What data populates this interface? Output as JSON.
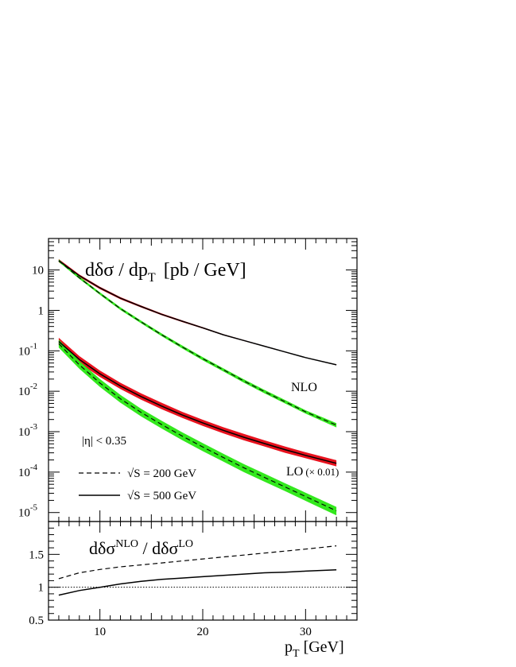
{
  "chart_data": [
    {
      "type": "line",
      "scale": "log",
      "title": "dδσ / dp",
      "title_sub": "T",
      "title_units": "[pb / GeV]",
      "xlim": [
        5,
        35
      ],
      "ylim": [
        6e-06,
        60
      ],
      "y_ticks": [
        {
          "value": 10,
          "mant": "10",
          "exp": ""
        },
        {
          "value": 1,
          "mant": "1",
          "exp": ""
        },
        {
          "value": 0.1,
          "mant": "10",
          "exp": "-1"
        },
        {
          "value": 0.01,
          "mant": "10",
          "exp": "-2"
        },
        {
          "value": 0.001,
          "mant": "10",
          "exp": "-3"
        },
        {
          "value": 0.0001,
          "mant": "10",
          "exp": "-4"
        },
        {
          "value": 1e-05,
          "mant": "10",
          "exp": "-5"
        }
      ],
      "x": [
        6,
        8,
        10,
        12,
        14,
        16,
        18,
        20,
        22,
        24,
        26,
        28,
        30,
        33
      ],
      "series": [
        {
          "group": "NLO",
          "energy": "500",
          "style": "solid",
          "band_color": "#e8121e",
          "values": [
            17,
            7.2,
            3.6,
            2.0,
            1.25,
            0.8,
            0.54,
            0.37,
            0.25,
            0.18,
            0.13,
            0.094,
            0.068,
            0.045
          ],
          "band": [
            [
              15.5,
              18.6
            ],
            [
              6.7,
              7.7
            ],
            [
              3.35,
              3.85
            ],
            [
              1.88,
              2.12
            ],
            [
              1.18,
              1.32
            ],
            [
              0.76,
              0.84
            ],
            [
              0.515,
              0.565
            ],
            [
              0.355,
              0.385
            ],
            [
              0.242,
              0.258
            ],
            [
              0.175,
              0.185
            ],
            [
              0.127,
              0.133
            ],
            [
              0.092,
              0.096
            ],
            [
              0.067,
              0.069
            ],
            [
              0.044,
              0.046
            ]
          ]
        },
        {
          "group": "NLO",
          "energy": "200",
          "style": "dashed",
          "band_color": "#33e81d",
          "values": [
            17,
            6.4,
            2.6,
            1.1,
            0.52,
            0.25,
            0.125,
            0.064,
            0.034,
            0.018,
            0.0098,
            0.0055,
            0.0031,
            0.00145
          ],
          "band": [
            [
              15.8,
              18.3
            ],
            [
              6.0,
              6.9
            ],
            [
              2.42,
              2.8
            ],
            [
              1.02,
              1.19
            ],
            [
              0.48,
              0.56
            ],
            [
              0.23,
              0.27
            ],
            [
              0.115,
              0.136
            ],
            [
              0.058,
              0.07
            ],
            [
              0.031,
              0.037
            ],
            [
              0.0163,
              0.0198
            ],
            [
              0.0089,
              0.0108
            ],
            [
              0.005,
              0.0061
            ],
            [
              0.0028,
              0.0034
            ],
            [
              0.00128,
              0.00162
            ]
          ]
        },
        {
          "group": "LO (× 0.01)",
          "energy": "500",
          "style": "solid",
          "band_color": "#e8121e",
          "values": [
            0.17,
            0.061,
            0.027,
            0.0135,
            0.0074,
            0.0043,
            0.0026,
            0.00165,
            0.00108,
            0.00073,
            0.00051,
            0.00036,
            0.00026,
            0.000165
          ],
          "band": [
            [
              0.135,
              0.21
            ],
            [
              0.05,
              0.074
            ],
            [
              0.0225,
              0.0325
            ],
            [
              0.0113,
              0.0162
            ],
            [
              0.0062,
              0.0089
            ],
            [
              0.0036,
              0.0052
            ],
            [
              0.0022,
              0.0031
            ],
            [
              0.00139,
              0.00197
            ],
            [
              0.00091,
              0.00129
            ],
            [
              0.00061,
              0.00088
            ],
            [
              0.00043,
              0.00061
            ],
            [
              0.0003,
              0.00043
            ],
            [
              0.00022,
              0.00031
            ],
            [
              0.000139,
              0.000197
            ]
          ]
        },
        {
          "group": "LO (× 0.01)",
          "energy": "200",
          "style": "dashed",
          "band_color": "#33e81d",
          "values": [
            0.15,
            0.045,
            0.016,
            0.0065,
            0.003,
            0.0015,
            0.00078,
            0.00042,
            0.00023,
            0.000128,
            7.4e-05,
            4.3e-05,
            2.5e-05,
            1.1e-05
          ],
          "band": [
            [
              0.12,
              0.19
            ],
            [
              0.036,
              0.056
            ],
            [
              0.0128,
              0.02
            ],
            [
              0.0052,
              0.0081
            ],
            [
              0.0024,
              0.0037
            ],
            [
              0.0012,
              0.00186
            ],
            [
              0.00062,
              0.00097
            ],
            [
              0.00033,
              0.00052
            ],
            [
              0.000182,
              0.000285
            ],
            [
              0.0001,
              0.000158
            ],
            [
              5.8e-05,
              9.2e-05
            ],
            [
              3.4e-05,
              5.3e-05
            ],
            [
              1.95e-05,
              3.1e-05
            ],
            [
              8.5e-06,
              1.38e-05
            ]
          ]
        }
      ],
      "labels": {
        "nlo": "NLO",
        "lo": "LO",
        "lo_factor": "(× 0.01)",
        "eta_cut": "|η|  < 0.35"
      },
      "legend": {
        "placement": "bottom-left",
        "entries": [
          {
            "style": "dashed",
            "label": "√S = 200 GeV"
          },
          {
            "style": "solid",
            "label": "√S = 500 GeV"
          }
        ]
      }
    },
    {
      "type": "line",
      "title": "dδσ",
      "title_sup1": "NLO",
      "title_mid": " / dδσ",
      "title_sup2": "LO",
      "xlabel": "p",
      "xlabel_sub": "T",
      "xlabel_units": " [GeV]",
      "xlim": [
        5,
        35
      ],
      "ylim": [
        0.5,
        2.0
      ],
      "x_ticks": [
        10,
        20,
        30
      ],
      "y_ticks": [
        {
          "value": 0.5,
          "label": "0.5"
        },
        {
          "value": 1.0,
          "label": "1"
        },
        {
          "value": 1.5,
          "label": "1.5"
        }
      ],
      "reference_line": 1.0,
      "x": [
        6,
        8,
        10,
        12,
        14,
        16,
        18,
        20,
        22,
        24,
        26,
        28,
        30,
        33
      ],
      "series": [
        {
          "energy": "200",
          "style": "dashed",
          "values": [
            1.13,
            1.22,
            1.27,
            1.31,
            1.34,
            1.37,
            1.4,
            1.43,
            1.46,
            1.49,
            1.52,
            1.55,
            1.58,
            1.63
          ]
        },
        {
          "energy": "500",
          "style": "solid",
          "values": [
            0.88,
            0.95,
            1.0,
            1.05,
            1.09,
            1.12,
            1.14,
            1.16,
            1.18,
            1.2,
            1.22,
            1.23,
            1.245,
            1.265
          ]
        }
      ]
    }
  ]
}
